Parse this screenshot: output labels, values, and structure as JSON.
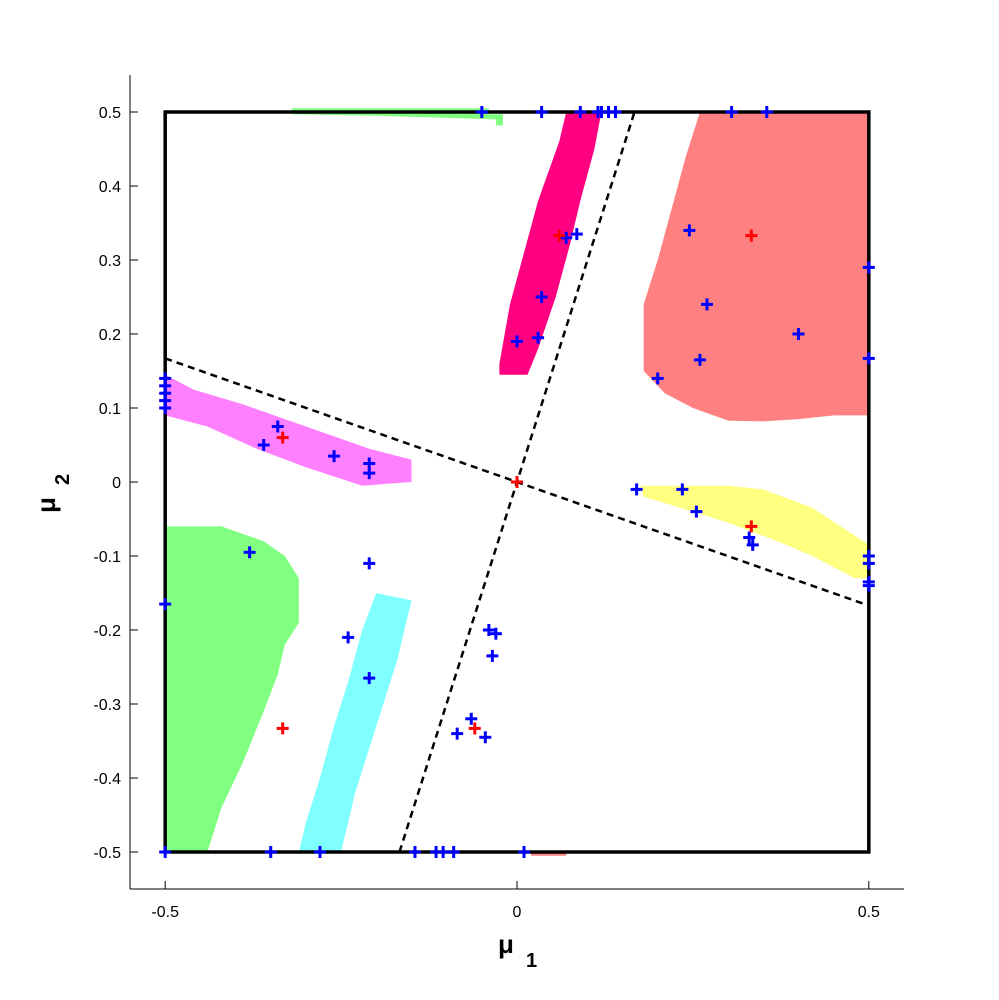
{
  "chart_data": {
    "type": "scatter",
    "title": "",
    "xlabel": "μ",
    "xlabel_sub": "1",
    "ylabel": "μ",
    "ylabel_sub": "2",
    "xlim": [
      -0.55,
      0.55
    ],
    "ylim": [
      -0.55,
      0.55
    ],
    "x_ticks": [
      "-0.5",
      "0",
      "0.5"
    ],
    "x_tick_values": [
      -0.5,
      0,
      0.5
    ],
    "y_ticks": [
      "-0.5",
      "-0.4",
      "-0.3",
      "-0.2",
      "-0.1",
      "0",
      "0.1",
      "0.2",
      "0.3",
      "0.4",
      "0.5"
    ],
    "y_tick_values": [
      -0.5,
      -0.4,
      -0.3,
      -0.2,
      -0.1,
      0,
      0.1,
      0.2,
      0.3,
      0.4,
      0.5
    ],
    "grid": false,
    "domain_box": [
      [
        -0.5,
        -0.5
      ],
      [
        0.5,
        -0.5
      ],
      [
        0.5,
        0.5
      ],
      [
        -0.5,
        0.5
      ]
    ],
    "dashed_lines": [
      {
        "points": [
          [
            -0.5,
            0.167
          ],
          [
            0.5,
            -0.167
          ]
        ]
      },
      {
        "points": [
          [
            -0.167,
            -0.5
          ],
          [
            0.167,
            0.5
          ]
        ]
      }
    ],
    "regions": [
      {
        "color": "#ff8080",
        "points": [
          [
            0.26,
            0.5
          ],
          [
            0.5,
            0.5
          ],
          [
            0.5,
            0.09
          ],
          [
            0.45,
            0.09
          ],
          [
            0.4,
            0.085
          ],
          [
            0.35,
            0.082
          ],
          [
            0.3,
            0.083
          ],
          [
            0.25,
            0.1
          ],
          [
            0.21,
            0.12
          ],
          [
            0.18,
            0.15
          ],
          [
            0.18,
            0.24
          ],
          [
            0.2,
            0.3
          ],
          [
            0.22,
            0.37
          ],
          [
            0.24,
            0.44
          ],
          [
            0.26,
            0.5
          ]
        ]
      },
      {
        "color": "#ff0080",
        "points": [
          [
            -0.025,
            0.16
          ],
          [
            -0.01,
            0.24
          ],
          [
            0.01,
            0.31
          ],
          [
            0.03,
            0.38
          ],
          [
            0.06,
            0.46
          ],
          [
            0.07,
            0.5
          ],
          [
            0.12,
            0.5
          ],
          [
            0.11,
            0.45
          ],
          [
            0.09,
            0.38
          ],
          [
            0.075,
            0.32
          ],
          [
            0.055,
            0.25
          ],
          [
            0.03,
            0.18
          ],
          [
            0.015,
            0.145
          ],
          [
            -0.025,
            0.145
          ]
        ]
      },
      {
        "color": "#80ff80",
        "points": [
          [
            -0.32,
            0.505
          ],
          [
            -0.04,
            0.505
          ],
          [
            -0.04,
            0.497
          ],
          [
            -0.02,
            0.497
          ],
          [
            -0.02,
            0.482
          ],
          [
            -0.03,
            0.482
          ],
          [
            -0.03,
            0.49
          ],
          [
            -0.2,
            0.495
          ],
          [
            -0.32,
            0.497
          ]
        ]
      },
      {
        "color": "#ff80ff",
        "points": [
          [
            -0.5,
            0.145
          ],
          [
            -0.46,
            0.125
          ],
          [
            -0.39,
            0.105
          ],
          [
            -0.33,
            0.085
          ],
          [
            -0.27,
            0.065
          ],
          [
            -0.21,
            0.045
          ],
          [
            -0.15,
            0.03
          ],
          [
            -0.15,
            0.0
          ],
          [
            -0.22,
            -0.005
          ],
          [
            -0.3,
            0.02
          ],
          [
            -0.37,
            0.045
          ],
          [
            -0.44,
            0.075
          ],
          [
            -0.5,
            0.09
          ]
        ]
      },
      {
        "color": "#ffff80",
        "points": [
          [
            0.3,
            -0.005
          ],
          [
            0.35,
            -0.01
          ],
          [
            0.42,
            -0.035
          ],
          [
            0.5,
            -0.085
          ],
          [
            0.5,
            -0.13
          ],
          [
            0.48,
            -0.13
          ],
          [
            0.42,
            -0.1
          ],
          [
            0.37,
            -0.08
          ],
          [
            0.3,
            -0.055
          ],
          [
            0.25,
            -0.04
          ],
          [
            0.18,
            -0.02
          ],
          [
            0.175,
            -0.005
          ]
        ]
      },
      {
        "color": "#80ff80",
        "points": [
          [
            -0.5,
            -0.06
          ],
          [
            -0.42,
            -0.06
          ],
          [
            -0.36,
            -0.08
          ],
          [
            -0.33,
            -0.1
          ],
          [
            -0.31,
            -0.13
          ],
          [
            -0.31,
            -0.19
          ],
          [
            -0.33,
            -0.22
          ],
          [
            -0.34,
            -0.26
          ],
          [
            -0.36,
            -0.31
          ],
          [
            -0.39,
            -0.38
          ],
          [
            -0.42,
            -0.44
          ],
          [
            -0.44,
            -0.5
          ],
          [
            -0.5,
            -0.5
          ]
        ]
      },
      {
        "color": "#80ffff",
        "points": [
          [
            -0.25,
            -0.5
          ],
          [
            -0.24,
            -0.46
          ],
          [
            -0.23,
            -0.42
          ],
          [
            -0.21,
            -0.36
          ],
          [
            -0.19,
            -0.3
          ],
          [
            -0.17,
            -0.24
          ],
          [
            -0.16,
            -0.2
          ],
          [
            -0.15,
            -0.16
          ],
          [
            -0.2,
            -0.15
          ],
          [
            -0.22,
            -0.2
          ],
          [
            -0.24,
            -0.27
          ],
          [
            -0.26,
            -0.33
          ],
          [
            -0.28,
            -0.4
          ],
          [
            -0.3,
            -0.46
          ],
          [
            -0.31,
            -0.5
          ]
        ]
      },
      {
        "color": "#ff8080",
        "points": [
          [
            0.02,
            -0.5
          ],
          [
            0.07,
            -0.5
          ],
          [
            0.07,
            -0.505
          ],
          [
            0.02,
            -0.505
          ]
        ]
      }
    ],
    "series": [
      {
        "marker": "plus",
        "color": "#0000ff",
        "x": [
          -0.05,
          0.035,
          0.09,
          0.115,
          0.12,
          0.13,
          0.14,
          0.305,
          0.355,
          0.245,
          0.27,
          0.26,
          0.4,
          0.2,
          0.5,
          0.5,
          -0.5,
          -0.5,
          -0.5,
          -0.5,
          -0.5,
          -0.34,
          -0.36,
          -0.26,
          -0.21,
          -0.21,
          0.17,
          0.235,
          0.255,
          0.33,
          0.335,
          0.5,
          0.5,
          0.5,
          0.5,
          -0.38,
          -0.21,
          -0.24,
          -0.21,
          -0.5,
          -0.04,
          -0.03,
          -0.035,
          -0.065,
          -0.085,
          -0.045,
          -0.145,
          -0.115,
          -0.105,
          -0.09,
          0.01,
          -0.5,
          -0.35,
          -0.28,
          -0.0,
          0.03,
          0.035,
          0.07,
          0.085
        ],
        "y": [
          0.5,
          0.5,
          0.5,
          0.5,
          0.5,
          0.5,
          0.5,
          0.5,
          0.5,
          0.34,
          0.24,
          0.165,
          0.2,
          0.14,
          0.29,
          0.167,
          0.14,
          0.13,
          0.12,
          0.11,
          0.1,
          0.075,
          0.05,
          0.035,
          0.025,
          0.012,
          -0.01,
          -0.01,
          -0.04,
          -0.075,
          -0.085,
          -0.1,
          -0.11,
          -0.135,
          -0.14,
          -0.095,
          -0.11,
          -0.21,
          -0.265,
          -0.165,
          -0.2,
          -0.205,
          -0.235,
          -0.32,
          -0.34,
          -0.345,
          -0.5,
          -0.5,
          -0.5,
          -0.5,
          -0.5,
          -0.5,
          -0.5,
          -0.5,
          0.19,
          0.195,
          0.25,
          0.33,
          0.335
        ]
      },
      {
        "marker": "plus",
        "color": "#ff0000",
        "x": [
          0.333,
          0.06,
          -0.333,
          0.0,
          0.333,
          -0.333,
          -0.06
        ],
        "y": [
          0.333,
          0.333,
          0.06,
          0.0,
          -0.06,
          -0.333,
          -0.333
        ]
      }
    ]
  }
}
